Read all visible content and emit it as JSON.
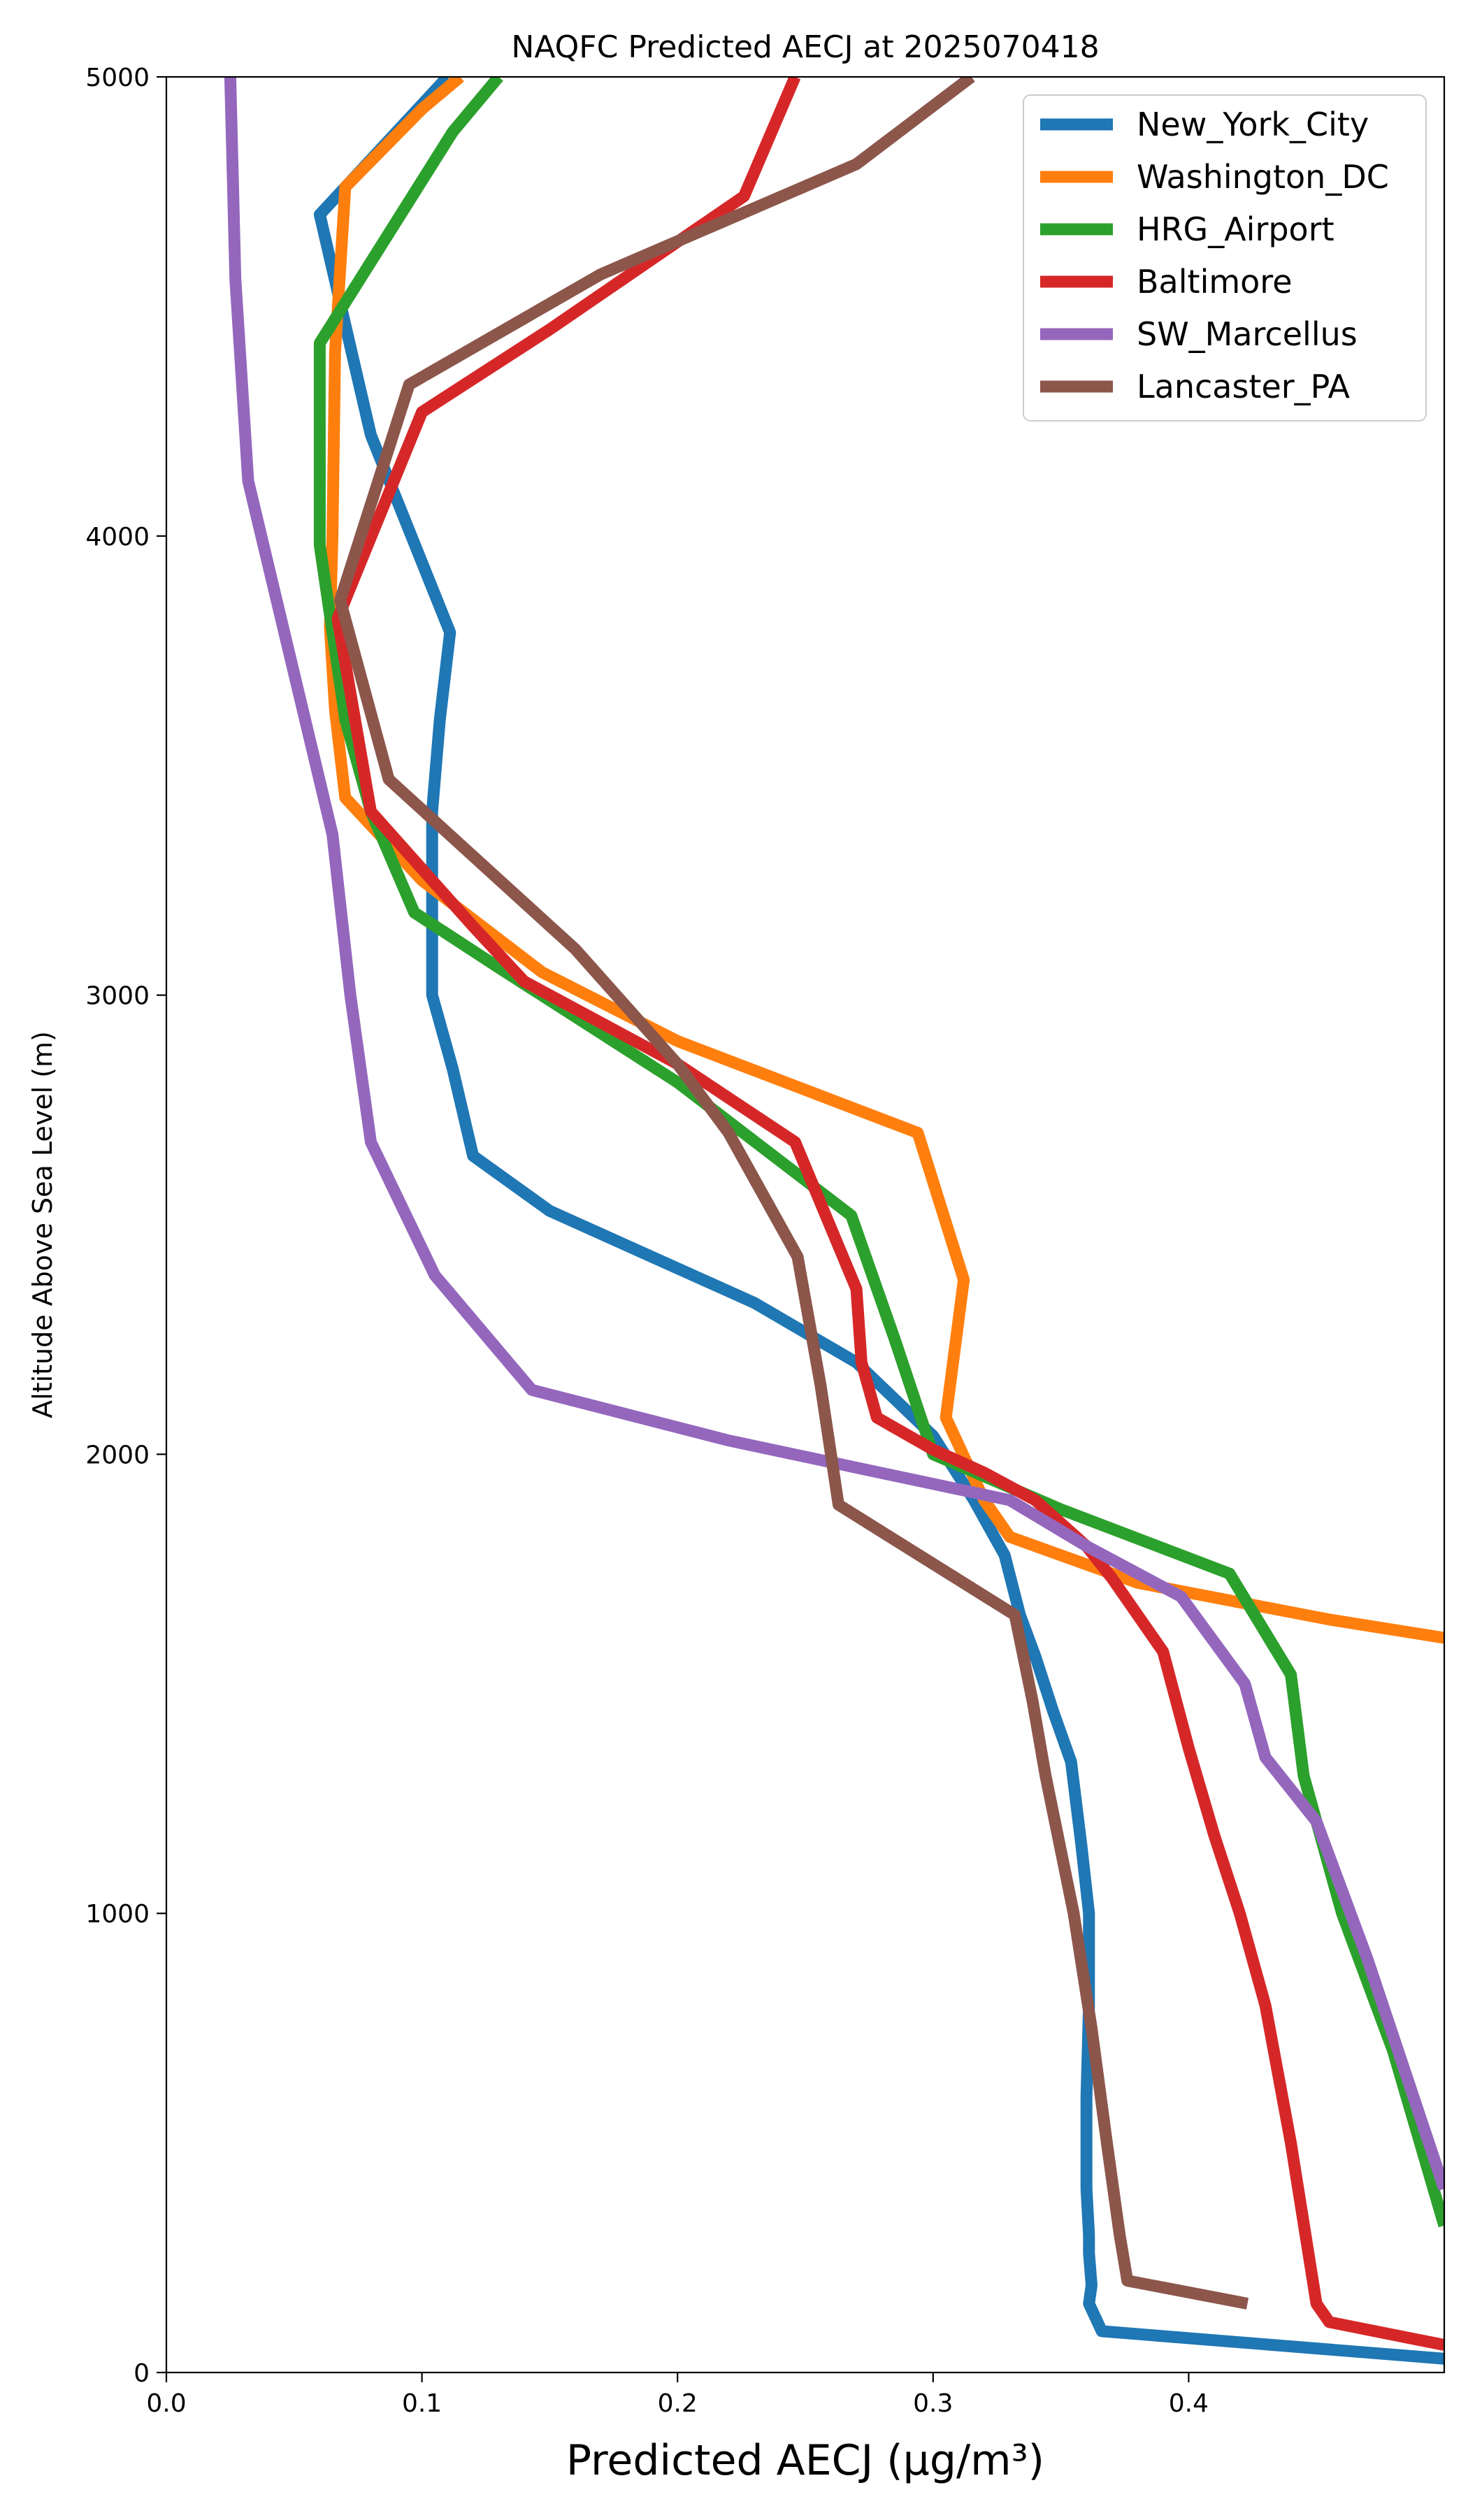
{
  "chart_data": {
    "type": "line",
    "title": "NAQFC Predicted AECJ at 2025070418",
    "xlabel": "Predicted AECJ (μg/m³)",
    "ylabel": "Altitude Above Sea Level (m)",
    "xlim": [
      0.0,
      0.5
    ],
    "ylim": [
      0,
      5000
    ],
    "x_ticks": [
      "0.0",
      "0.1",
      "0.2",
      "0.3",
      "0.4"
    ],
    "y_ticks": [
      "0",
      "1000",
      "2000",
      "3000",
      "4000",
      "5000"
    ],
    "grid": false,
    "legend_position": "top-right",
    "series": [
      {
        "name": "New_York_City",
        "color": "#1f77b4",
        "points": [
          [
            0.5,
            30
          ],
          [
            0.366,
            90
          ],
          [
            0.361,
            150
          ],
          [
            0.362,
            190
          ],
          [
            0.361,
            260
          ],
          [
            0.361,
            300
          ],
          [
            0.36,
            400
          ],
          [
            0.36,
            600
          ],
          [
            0.361,
            800
          ],
          [
            0.361,
            1000
          ],
          [
            0.358,
            1150
          ],
          [
            0.354,
            1330
          ],
          [
            0.347,
            1440
          ],
          [
            0.34,
            1560
          ],
          [
            0.334,
            1650
          ],
          [
            0.328,
            1780
          ],
          [
            0.316,
            1900
          ],
          [
            0.3,
            2040
          ],
          [
            0.27,
            2200
          ],
          [
            0.23,
            2330
          ],
          [
            0.15,
            2530
          ],
          [
            0.12,
            2650
          ],
          [
            0.112,
            2840
          ],
          [
            0.104,
            3000
          ],
          [
            0.104,
            3200
          ],
          [
            0.104,
            3400
          ],
          [
            0.107,
            3600
          ],
          [
            0.111,
            3790
          ],
          [
            0.08,
            4220
          ],
          [
            0.06,
            4700
          ],
          [
            0.11,
            5000
          ]
        ]
      },
      {
        "name": "Washington_DC",
        "color": "#ff7f0e",
        "points": [
          [
            0.5,
            1600
          ],
          [
            0.455,
            1640
          ],
          [
            0.38,
            1720
          ],
          [
            0.33,
            1820
          ],
          [
            0.32,
            1900
          ],
          [
            0.305,
            2080
          ],
          [
            0.312,
            2380
          ],
          [
            0.294,
            2700
          ],
          [
            0.2,
            2900
          ],
          [
            0.147,
            3050
          ],
          [
            0.1,
            3250
          ],
          [
            0.07,
            3430
          ],
          [
            0.066,
            3620
          ],
          [
            0.064,
            3800
          ],
          [
            0.065,
            4000
          ],
          [
            0.066,
            4400
          ],
          [
            0.07,
            4760
          ],
          [
            0.1,
            4930
          ],
          [
            0.115,
            5000
          ]
        ]
      },
      {
        "name": "HRG_Airport",
        "color": "#2ca02c",
        "points": [
          [
            0.5,
            320
          ],
          [
            0.48,
            700
          ],
          [
            0.46,
            1000
          ],
          [
            0.445,
            1300
          ],
          [
            0.44,
            1520
          ],
          [
            0.416,
            1740
          ],
          [
            0.35,
            1880
          ],
          [
            0.3,
            2000
          ],
          [
            0.285,
            2250
          ],
          [
            0.268,
            2520
          ],
          [
            0.2,
            2810
          ],
          [
            0.13,
            3060
          ],
          [
            0.097,
            3180
          ],
          [
            0.08,
            3400
          ],
          [
            0.07,
            3600
          ],
          [
            0.06,
            3980
          ],
          [
            0.06,
            4200
          ],
          [
            0.06,
            4420
          ],
          [
            0.112,
            4880
          ],
          [
            0.13,
            5000
          ]
        ]
      },
      {
        "name": "Baltimore",
        "color": "#d62728",
        "points": [
          [
            0.5,
            60
          ],
          [
            0.455,
            110
          ],
          [
            0.45,
            150
          ],
          [
            0.44,
            500
          ],
          [
            0.43,
            800
          ],
          [
            0.42,
            1000
          ],
          [
            0.41,
            1170
          ],
          [
            0.4,
            1360
          ],
          [
            0.39,
            1570
          ],
          [
            0.37,
            1730
          ],
          [
            0.36,
            1800
          ],
          [
            0.34,
            1900
          ],
          [
            0.32,
            1960
          ],
          [
            0.3,
            2010
          ],
          [
            0.278,
            2080
          ],
          [
            0.272,
            2200
          ],
          [
            0.27,
            2360
          ],
          [
            0.246,
            2680
          ],
          [
            0.2,
            2850
          ],
          [
            0.14,
            3030
          ],
          [
            0.12,
            3150
          ],
          [
            0.08,
            3400
          ],
          [
            0.067,
            3820
          ],
          [
            0.1,
            4270
          ],
          [
            0.15,
            4450
          ],
          [
            0.226,
            4740
          ],
          [
            0.246,
            5000
          ]
        ]
      },
      {
        "name": "SW_Marcellus",
        "color": "#9467bd",
        "points": [
          [
            0.5,
            400
          ],
          [
            0.47,
            900
          ],
          [
            0.45,
            1200
          ],
          [
            0.43,
            1340
          ],
          [
            0.422,
            1500
          ],
          [
            0.397,
            1690
          ],
          [
            0.36,
            1800
          ],
          [
            0.33,
            1900
          ],
          [
            0.22,
            2030
          ],
          [
            0.143,
            2140
          ],
          [
            0.105,
            2390
          ],
          [
            0.08,
            2680
          ],
          [
            0.072,
            3000
          ],
          [
            0.065,
            3350
          ],
          [
            0.032,
            4120
          ],
          [
            0.027,
            4560
          ],
          [
            0.025,
            5000
          ]
        ]
      },
      {
        "name": "Lancaster_PA",
        "color": "#8c564b",
        "points": [
          [
            0.423,
            150
          ],
          [
            0.376,
            200
          ],
          [
            0.373,
            300
          ],
          [
            0.368,
            500
          ],
          [
            0.362,
            750
          ],
          [
            0.355,
            1000
          ],
          [
            0.344,
            1300
          ],
          [
            0.339,
            1460
          ],
          [
            0.332,
            1650
          ],
          [
            0.263,
            1890
          ],
          [
            0.256,
            2150
          ],
          [
            0.247,
            2430
          ],
          [
            0.22,
            2700
          ],
          [
            0.2,
            2850
          ],
          [
            0.16,
            3100
          ],
          [
            0.087,
            3470
          ],
          [
            0.068,
            3860
          ],
          [
            0.095,
            4330
          ],
          [
            0.17,
            4570
          ],
          [
            0.27,
            4810
          ],
          [
            0.315,
            5000
          ]
        ]
      }
    ]
  }
}
